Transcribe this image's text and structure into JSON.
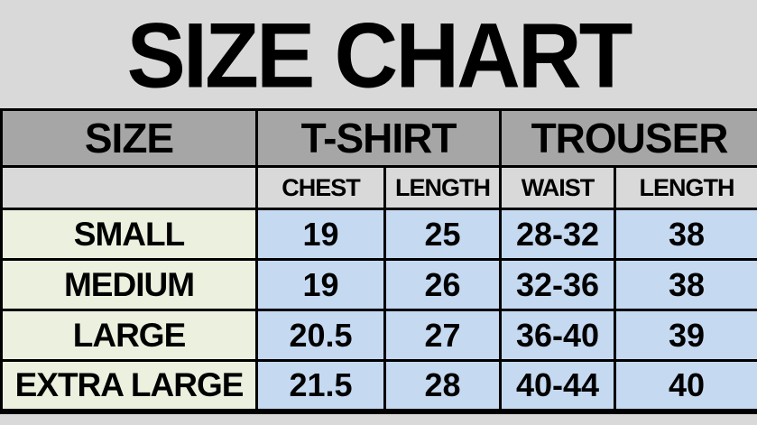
{
  "title": "SIZE CHART",
  "colors": {
    "background": "#d9d9d9",
    "header_row_bg": "#a6a6a6",
    "subheader_row_bg": "#d9d9d9",
    "size_label_cell_bg": "#ebf1de",
    "value_cell_bg": "#c5d9f1",
    "border": "#000000",
    "text": "#000000"
  },
  "table": {
    "header": {
      "size": "SIZE",
      "tshirt": "T-SHIRT",
      "trouser": "TROUSER"
    },
    "subheader": [
      "CHEST",
      "LENGTH",
      "WAIST",
      "LENGTH"
    ],
    "rows": [
      {
        "label": "SMALL",
        "values": [
          "19",
          "25",
          "28-32",
          "38"
        ]
      },
      {
        "label": "MEDIUM",
        "values": [
          "19",
          "26",
          "32-36",
          "38"
        ]
      },
      {
        "label": "LARGE",
        "values": [
          "20.5",
          "27",
          "36-40",
          "39"
        ]
      },
      {
        "label": "EXTRA LARGE",
        "values": [
          "21.5",
          "28",
          "40-44",
          "40"
        ]
      }
    ]
  },
  "chart_data": {
    "type": "table",
    "title": "SIZE CHART",
    "columns": [
      "SIZE",
      "T-SHIRT CHEST",
      "T-SHIRT LENGTH",
      "TROUSER WAIST",
      "TROUSER LENGTH"
    ],
    "rows": [
      [
        "SMALL",
        19,
        25,
        "28-32",
        38
      ],
      [
        "MEDIUM",
        19,
        26,
        "32-36",
        38
      ],
      [
        "LARGE",
        20.5,
        27,
        "36-40",
        39
      ],
      [
        "EXTRA LARGE",
        21.5,
        28,
        "40-44",
        40
      ]
    ]
  }
}
